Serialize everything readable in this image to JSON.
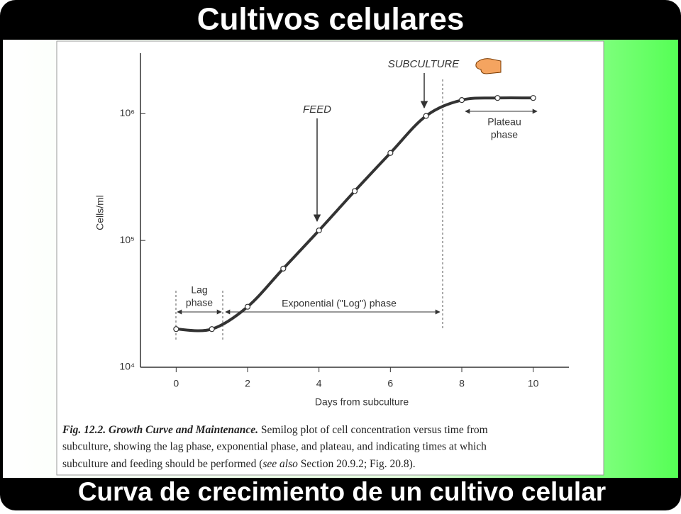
{
  "slide": {
    "title": "Cultivos celulares",
    "footer": "Curva de crecimiento de un cultivo celular"
  },
  "chart_data": {
    "type": "line",
    "log_y": true,
    "x": [
      0,
      1,
      2,
      3,
      4,
      5,
      6,
      7,
      8,
      9,
      10
    ],
    "values": [
      20000,
      20000,
      30000,
      60000,
      120000,
      245000,
      490000,
      960000,
      1280000,
      1330000,
      1330000
    ],
    "color": "#333333",
    "xlim": [
      -1,
      11
    ],
    "xticks": [
      0,
      2,
      4,
      6,
      8,
      10
    ],
    "ylim": [
      10000,
      3000000
    ],
    "yticks": [
      {
        "value": 10000,
        "label": "10⁴"
      },
      {
        "value": 100000,
        "label": "10⁵"
      },
      {
        "value": 1000000,
        "label": "10⁶"
      }
    ],
    "x_label": "Days from subculture",
    "y_label": "Cells/ml",
    "annotations": {
      "feed": "FEED",
      "subculture": "SUBCULTURE",
      "lag": [
        "Lag",
        "phase"
      ],
      "exponential": "Exponential (\"Log\") phase",
      "plateau": [
        "Plateau",
        "phase"
      ]
    },
    "caption": [
      "Fig. 12.2. Growth Curve and Maintenance.",
      " Semilog plot of cell concentration versus time from",
      "subculture, showing the lag phase, exponential phase, and plateau, and indicating times at which",
      "subculture and feeding should be performed (",
      "see also",
      " Section 20.9.2; Fig. 20.8)."
    ]
  }
}
